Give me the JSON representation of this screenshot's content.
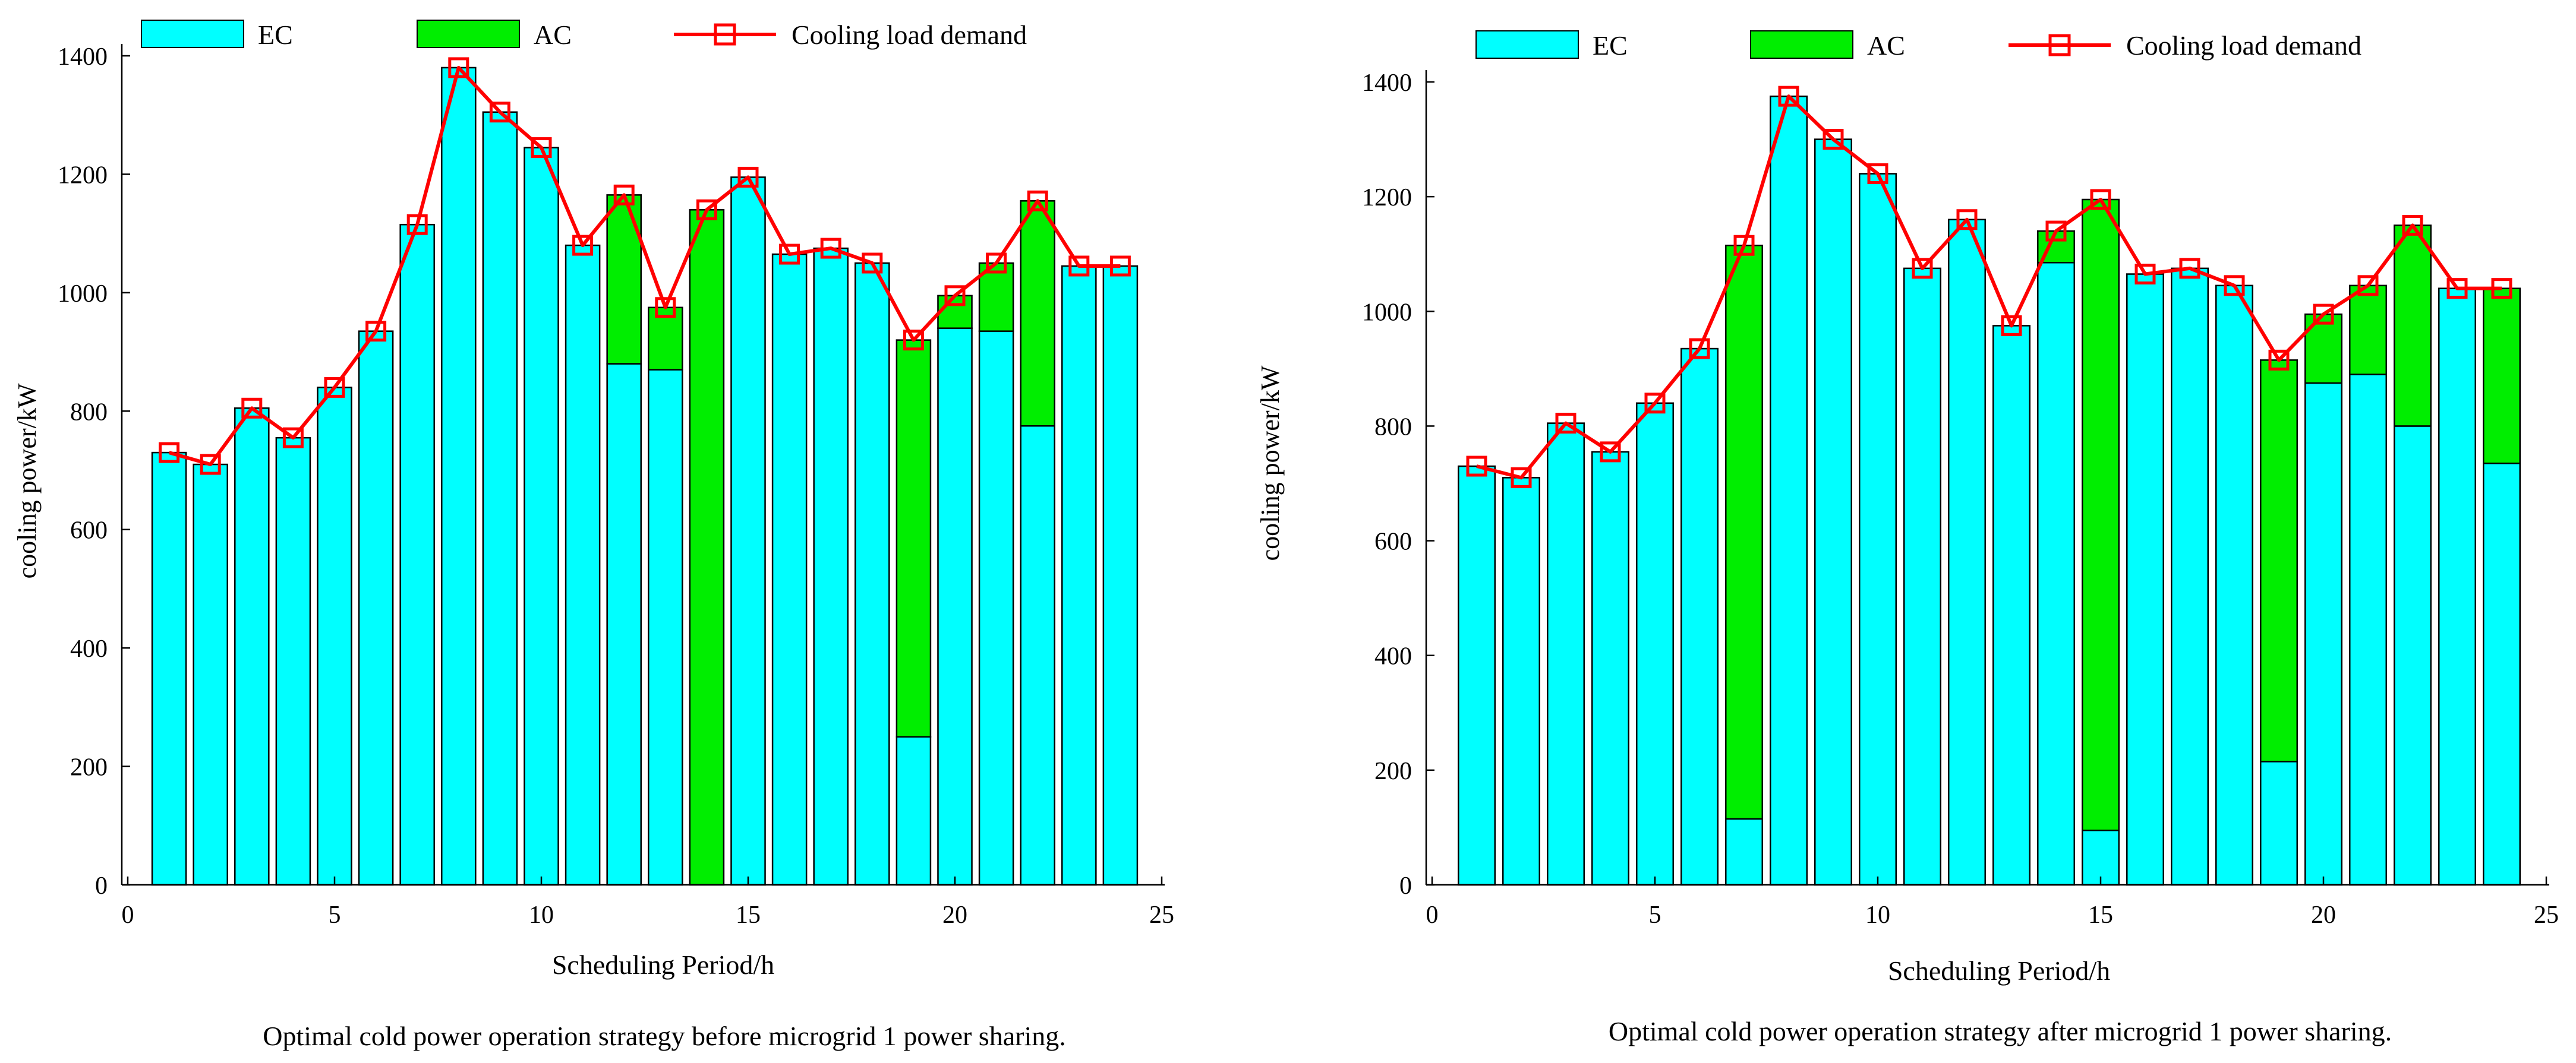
{
  "chart_data": [
    {
      "type": "bar",
      "stacked": true,
      "caption": "Optimal cold power operation strategy before microgrid 1 power sharing.",
      "xlabel": "Scheduling Period/h",
      "ylabel": "cooling power/kW",
      "xlim": [
        0,
        25
      ],
      "ylim": [
        0,
        1400
      ],
      "xticks": [
        0,
        5,
        10,
        15,
        20,
        25
      ],
      "yticks": [
        0,
        200,
        400,
        600,
        800,
        1000,
        1200,
        1400
      ],
      "grid": false,
      "legend_position": "top",
      "x": [
        1,
        2,
        3,
        4,
        5,
        6,
        7,
        8,
        9,
        10,
        11,
        12,
        13,
        14,
        15,
        16,
        17,
        18,
        19,
        20,
        21,
        22,
        23,
        24
      ],
      "series": [
        {
          "name": "EC",
          "kind": "bar",
          "color": "#00FFFF",
          "values": [
            730,
            710,
            805,
            755,
            840,
            935,
            1115,
            1380,
            1305,
            1245,
            1080,
            880,
            870,
            0,
            1195,
            1065,
            1075,
            1050,
            250,
            940,
            935,
            775,
            1045,
            1045
          ]
        },
        {
          "name": "AC",
          "kind": "bar",
          "color": "#00EE00",
          "values": [
            0,
            0,
            0,
            0,
            0,
            0,
            0,
            0,
            0,
            0,
            0,
            285,
            105,
            1140,
            0,
            0,
            0,
            0,
            670,
            55,
            115,
            380,
            0,
            0
          ]
        },
        {
          "name": "Cooling load demand",
          "kind": "line",
          "color": "#FF0000",
          "values": [
            730,
            710,
            805,
            755,
            840,
            935,
            1115,
            1380,
            1305,
            1245,
            1080,
            1165,
            975,
            1140,
            1195,
            1065,
            1075,
            1050,
            920,
            995,
            1050,
            1155,
            1045,
            1045
          ]
        }
      ]
    },
    {
      "type": "bar",
      "stacked": true,
      "caption": "Optimal cold power operation strategy after microgrid 1 power sharing.",
      "xlabel": "Scheduling Period/h",
      "ylabel": "cooling power/kW",
      "xlim": [
        0,
        25
      ],
      "ylim": [
        0,
        1400
      ],
      "xticks": [
        0,
        5,
        10,
        15,
        20,
        25
      ],
      "yticks": [
        0,
        200,
        400,
        600,
        800,
        1000,
        1200,
        1400
      ],
      "grid": false,
      "legend_position": "top",
      "x": [
        1,
        2,
        3,
        4,
        5,
        6,
        7,
        8,
        9,
        10,
        11,
        12,
        13,
        14,
        15,
        16,
        17,
        18,
        19,
        20,
        21,
        22,
        23,
        24
      ],
      "series": [
        {
          "name": "EC",
          "kind": "bar",
          "color": "#00FFFF",
          "values": [
            730,
            710,
            805,
            755,
            840,
            935,
            115,
            1375,
            1300,
            1240,
            1075,
            1160,
            975,
            1085,
            95,
            1065,
            1075,
            1045,
            215,
            875,
            890,
            800,
            1040,
            735
          ]
        },
        {
          "name": "AC",
          "kind": "bar",
          "color": "#00EE00",
          "values": [
            0,
            0,
            0,
            0,
            0,
            0,
            1000,
            0,
            0,
            0,
            0,
            0,
            0,
            55,
            1100,
            0,
            0,
            0,
            700,
            120,
            155,
            350,
            0,
            305
          ]
        },
        {
          "name": "Cooling load demand",
          "kind": "line",
          "color": "#FF0000",
          "values": [
            730,
            710,
            805,
            755,
            840,
            935,
            1115,
            1375,
            1300,
            1240,
            1075,
            1160,
            975,
            1140,
            1195,
            1065,
            1075,
            1045,
            915,
            995,
            1045,
            1150,
            1040,
            1040
          ]
        }
      ]
    }
  ]
}
